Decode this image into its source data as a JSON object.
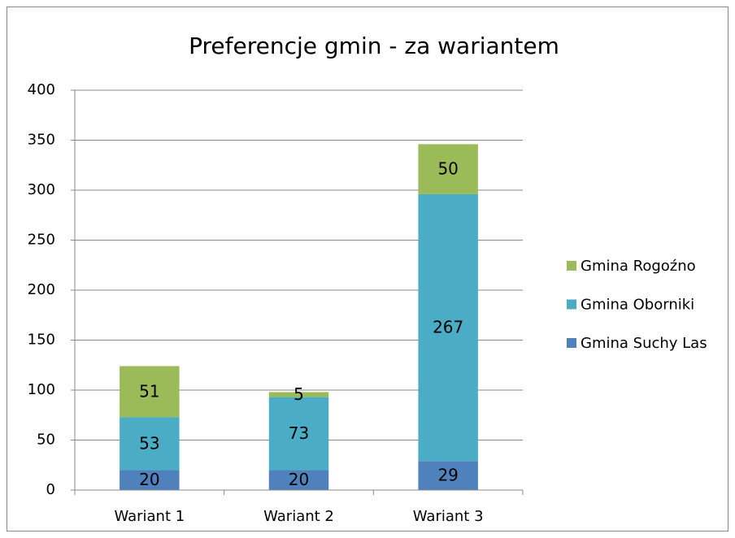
{
  "chart_data": {
    "type": "stacked_bar",
    "title": "Preferencje gmin - za wariantem",
    "categories": [
      "Wariant 1",
      "Wariant 2",
      "Wariant 3"
    ],
    "series": [
      {
        "name": "Gmina Suchy Las",
        "color": "#4f81bd",
        "values": [
          20,
          20,
          29
        ]
      },
      {
        "name": "Gmina Oborniki",
        "color": "#4bacc6",
        "values": [
          53,
          73,
          267
        ]
      },
      {
        "name": "Gmina Rogoźno",
        "color": "#9bbb59",
        "values": [
          51,
          5,
          50
        ]
      }
    ],
    "ylim": [
      0,
      400
    ],
    "yticks": [
      0,
      50,
      100,
      150,
      200,
      250,
      300,
      350,
      400
    ],
    "grid": true,
    "legend": "right"
  }
}
